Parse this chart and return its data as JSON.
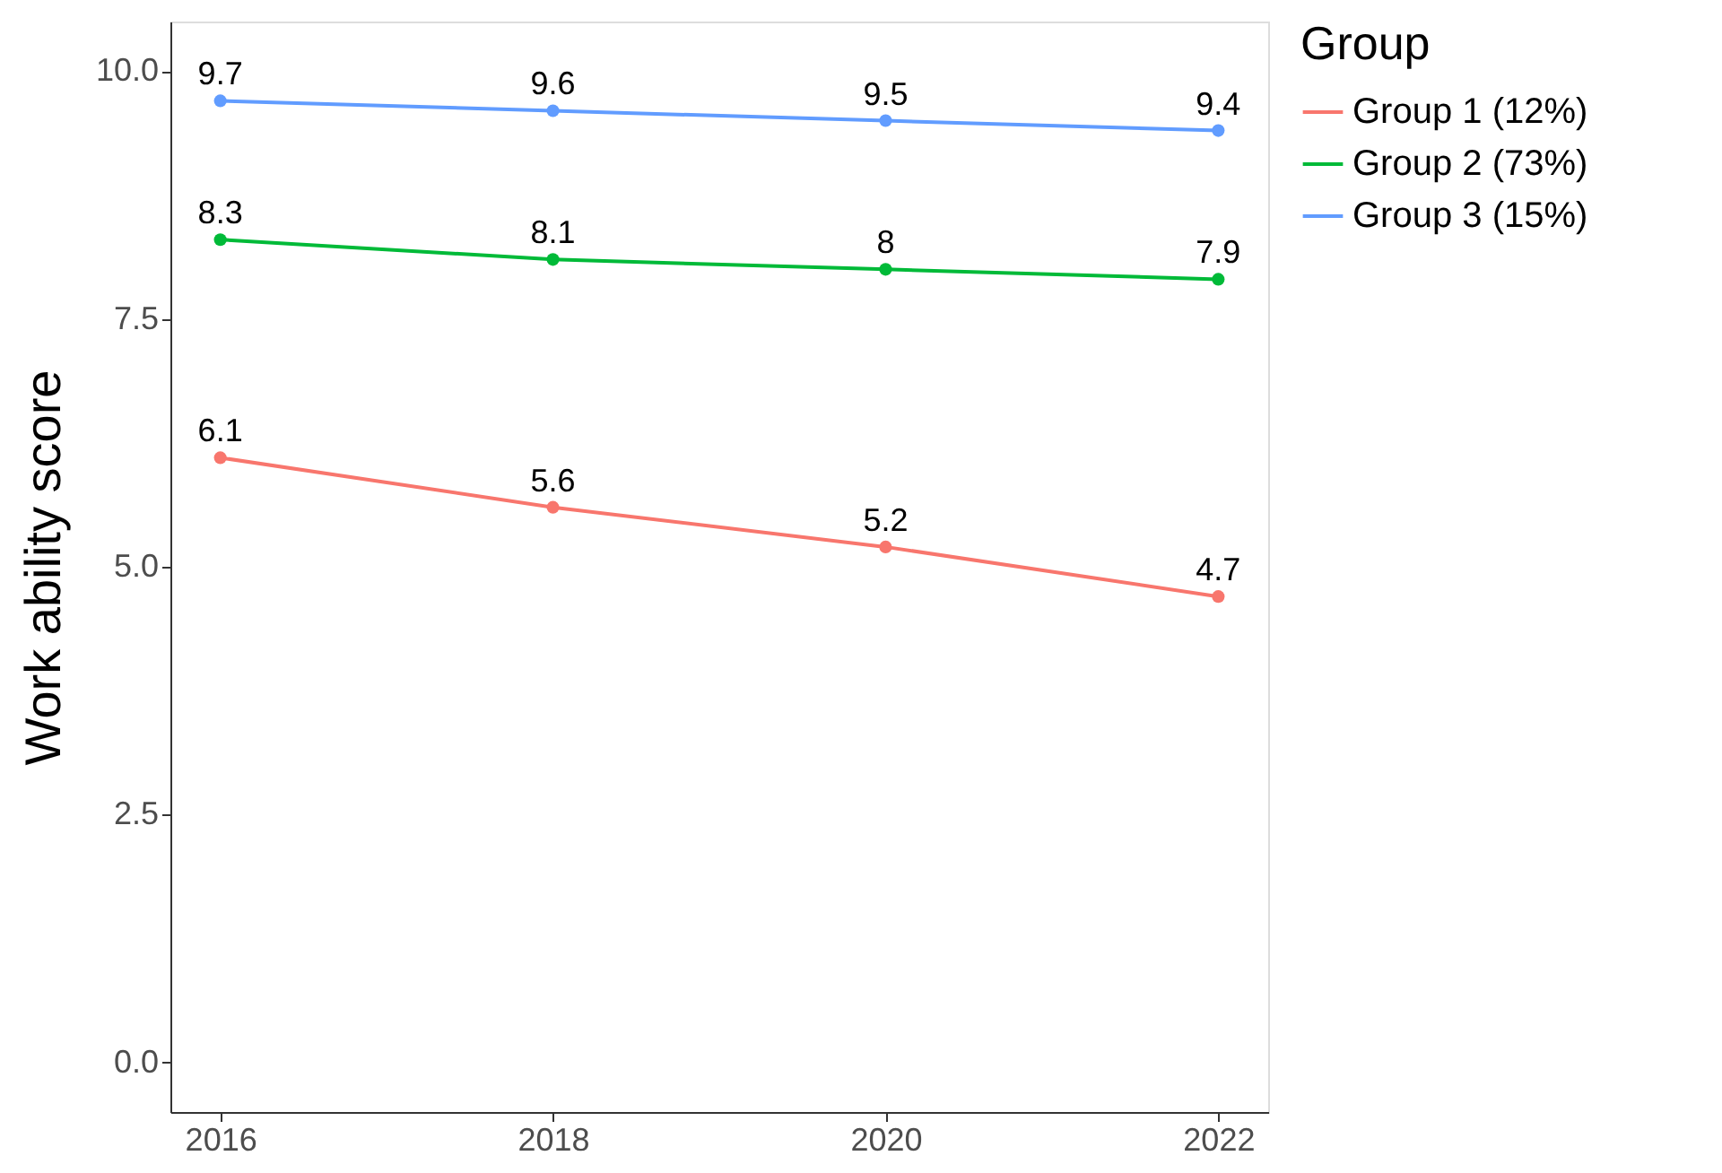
{
  "chart_data": {
    "type": "line",
    "ylabel": "Work ability score",
    "legend_title": "Group",
    "x": [
      2016,
      2018,
      2020,
      2022
    ],
    "series": [
      {
        "name": "Group 1 (12%)",
        "color": "#f8766d",
        "values": [
          6.1,
          5.6,
          5.2,
          4.7
        ]
      },
      {
        "name": "Group 2 (73%)",
        "color": "#00ba38",
        "values": [
          8.3,
          8.1,
          8.0,
          7.9
        ]
      },
      {
        "name": "Group 3 (15%)",
        "color": "#619cff",
        "values": [
          9.7,
          9.6,
          9.5,
          9.4
        ]
      }
    ],
    "xlim": [
      2015.7,
      2022.3
    ],
    "xticks": [
      2016,
      2018,
      2020,
      2022
    ],
    "ylim": [
      -0.5,
      10.5
    ],
    "yticks": [
      {
        "value": 0,
        "label": "0.0"
      },
      {
        "value": 2.5,
        "label": "2.5"
      },
      {
        "value": 5,
        "label": "5.0"
      },
      {
        "value": 7.5,
        "label": "7.5"
      },
      {
        "value": 10,
        "label": "10.0"
      }
    ],
    "grid": false,
    "legend": "right",
    "marker": "circle",
    "line_style": "solid",
    "data_labels": true
  }
}
